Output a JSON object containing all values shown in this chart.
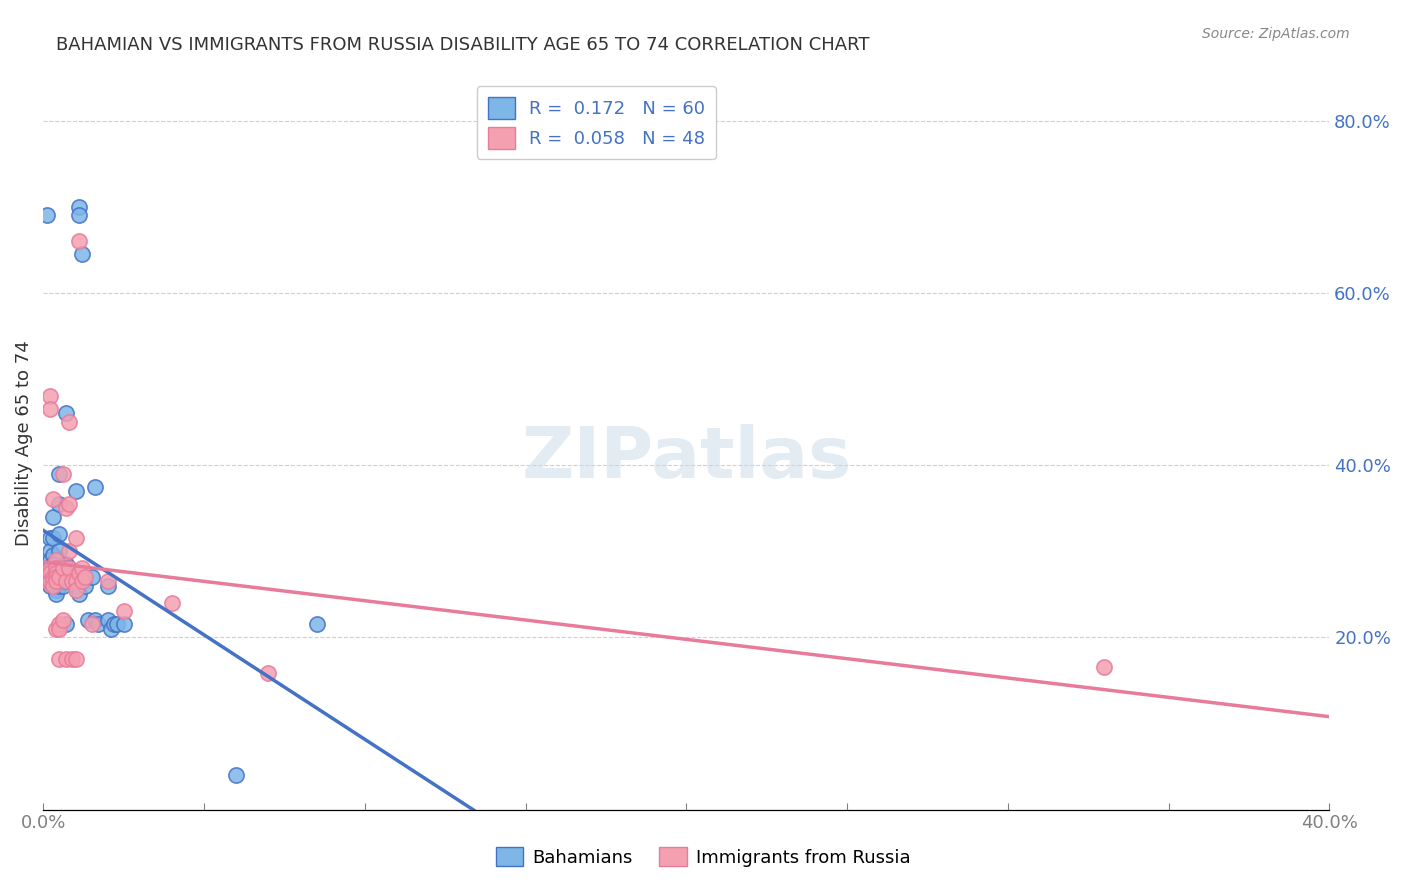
{
  "title": "BAHAMIAN VS IMMIGRANTS FROM RUSSIA DISABILITY AGE 65 TO 74 CORRELATION CHART",
  "source": "Source: ZipAtlas.com",
  "ylabel": "Disability Age 65 to 74",
  "xlim": [
    0.0,
    0.4
  ],
  "ylim": [
    0.0,
    0.85
  ],
  "legend_R1": "0.172",
  "legend_N1": "60",
  "legend_R2": "0.058",
  "legend_N2": "48",
  "blue_color": "#7EB6E8",
  "pink_color": "#F4A0B0",
  "blue_line_color": "#4472C4",
  "pink_line_color": "#E87B9A",
  "blue_scatter": [
    [
      0.001,
      0.69
    ],
    [
      0.001,
      0.285
    ],
    [
      0.002,
      0.315
    ],
    [
      0.002,
      0.3
    ],
    [
      0.002,
      0.26
    ],
    [
      0.002,
      0.29
    ],
    [
      0.003,
      0.34
    ],
    [
      0.003,
      0.315
    ],
    [
      0.003,
      0.295
    ],
    [
      0.003,
      0.285
    ],
    [
      0.003,
      0.28
    ],
    [
      0.003,
      0.275
    ],
    [
      0.003,
      0.27
    ],
    [
      0.003,
      0.265
    ],
    [
      0.004,
      0.285
    ],
    [
      0.004,
      0.28
    ],
    [
      0.004,
      0.275
    ],
    [
      0.004,
      0.27
    ],
    [
      0.004,
      0.265
    ],
    [
      0.004,
      0.26
    ],
    [
      0.004,
      0.255
    ],
    [
      0.004,
      0.25
    ],
    [
      0.005,
      0.39
    ],
    [
      0.005,
      0.355
    ],
    [
      0.005,
      0.32
    ],
    [
      0.005,
      0.3
    ],
    [
      0.005,
      0.28
    ],
    [
      0.005,
      0.27
    ],
    [
      0.005,
      0.26
    ],
    [
      0.006,
      0.28
    ],
    [
      0.006,
      0.27
    ],
    [
      0.006,
      0.265
    ],
    [
      0.006,
      0.26
    ],
    [
      0.007,
      0.46
    ],
    [
      0.007,
      0.285
    ],
    [
      0.007,
      0.265
    ],
    [
      0.007,
      0.215
    ],
    [
      0.008,
      0.28
    ],
    [
      0.008,
      0.27
    ],
    [
      0.009,
      0.265
    ],
    [
      0.01,
      0.37
    ],
    [
      0.01,
      0.26
    ],
    [
      0.011,
      0.7
    ],
    [
      0.011,
      0.69
    ],
    [
      0.011,
      0.25
    ],
    [
      0.012,
      0.645
    ],
    [
      0.013,
      0.26
    ],
    [
      0.014,
      0.22
    ],
    [
      0.015,
      0.27
    ],
    [
      0.016,
      0.375
    ],
    [
      0.016,
      0.22
    ],
    [
      0.017,
      0.215
    ],
    [
      0.02,
      0.26
    ],
    [
      0.02,
      0.22
    ],
    [
      0.021,
      0.21
    ],
    [
      0.022,
      0.215
    ],
    [
      0.023,
      0.215
    ],
    [
      0.025,
      0.215
    ],
    [
      0.06,
      0.04
    ],
    [
      0.085,
      0.215
    ]
  ],
  "pink_scatter": [
    [
      0.001,
      0.27
    ],
    [
      0.001,
      0.265
    ],
    [
      0.002,
      0.48
    ],
    [
      0.002,
      0.465
    ],
    [
      0.002,
      0.28
    ],
    [
      0.002,
      0.275
    ],
    [
      0.002,
      0.265
    ],
    [
      0.003,
      0.36
    ],
    [
      0.003,
      0.27
    ],
    [
      0.003,
      0.265
    ],
    [
      0.003,
      0.26
    ],
    [
      0.004,
      0.29
    ],
    [
      0.004,
      0.28
    ],
    [
      0.004,
      0.275
    ],
    [
      0.004,
      0.27
    ],
    [
      0.004,
      0.265
    ],
    [
      0.004,
      0.21
    ],
    [
      0.005,
      0.27
    ],
    [
      0.005,
      0.215
    ],
    [
      0.005,
      0.21
    ],
    [
      0.005,
      0.175
    ],
    [
      0.006,
      0.39
    ],
    [
      0.006,
      0.28
    ],
    [
      0.006,
      0.22
    ],
    [
      0.007,
      0.35
    ],
    [
      0.007,
      0.265
    ],
    [
      0.007,
      0.175
    ],
    [
      0.008,
      0.45
    ],
    [
      0.008,
      0.355
    ],
    [
      0.008,
      0.3
    ],
    [
      0.008,
      0.28
    ],
    [
      0.009,
      0.265
    ],
    [
      0.009,
      0.175
    ],
    [
      0.01,
      0.315
    ],
    [
      0.01,
      0.265
    ],
    [
      0.01,
      0.255
    ],
    [
      0.01,
      0.175
    ],
    [
      0.011,
      0.66
    ],
    [
      0.011,
      0.275
    ],
    [
      0.012,
      0.28
    ],
    [
      0.012,
      0.265
    ],
    [
      0.013,
      0.27
    ],
    [
      0.015,
      0.215
    ],
    [
      0.02,
      0.265
    ],
    [
      0.025,
      0.23
    ],
    [
      0.04,
      0.24
    ],
    [
      0.07,
      0.158
    ],
    [
      0.33,
      0.165
    ]
  ],
  "watermark": "ZIPatlas",
  "background_color": "#FFFFFF",
  "grid_color": "#D0D0D0"
}
